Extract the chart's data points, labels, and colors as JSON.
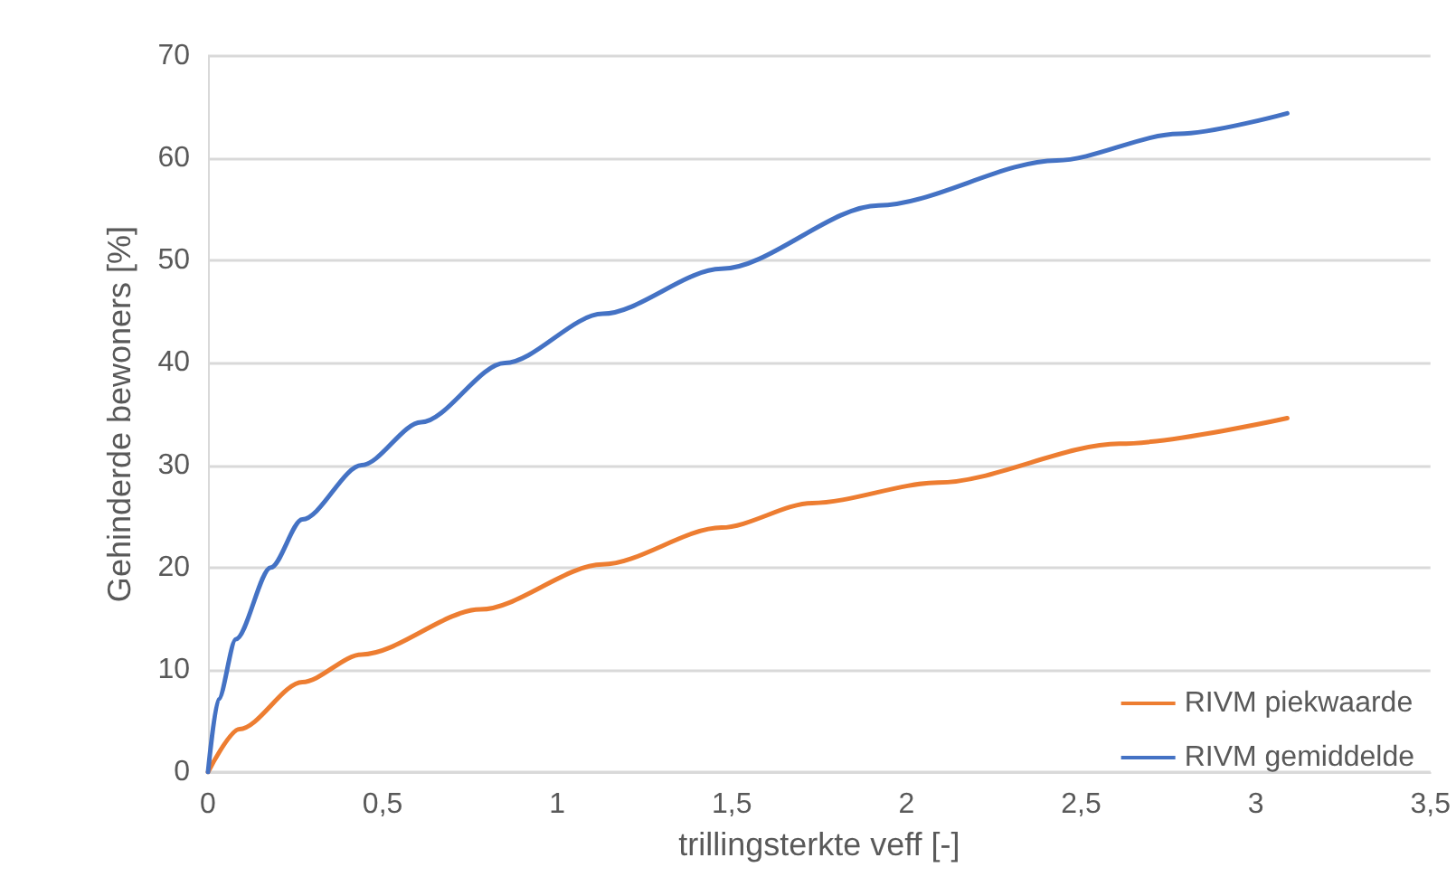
{
  "chart_data": {
    "type": "line",
    "xlabel": "trillingsterkte veff [-]",
    "ylabel": "Gehinderde bewoners [%]",
    "xlim": [
      0,
      3.5
    ],
    "xticks": [
      {
        "value": 0,
        "label": "0"
      },
      {
        "value": 0.5,
        "label": "0,5"
      },
      {
        "value": 1,
        "label": "1"
      },
      {
        "value": 1.5,
        "label": "1,5"
      },
      {
        "value": 2,
        "label": "2"
      },
      {
        "value": 2.5,
        "label": "2,5"
      },
      {
        "value": 3,
        "label": "3"
      },
      {
        "value": 3.5,
        "label": "3,5"
      }
    ],
    "ylim": [
      0,
      70
    ],
    "yticks": [
      0,
      10,
      20,
      30,
      40,
      50,
      60,
      70
    ],
    "grid": "y",
    "legend": "bottom right",
    "marker": "none",
    "line_style": "solid",
    "series": [
      {
        "name": "RIVM piekwaarde",
        "color": "#ed7d31",
        "x": [
          0,
          0.09,
          0.27,
          0.44,
          0.78,
          1.13,
          1.47,
          1.73,
          2.09,
          2.61,
          3.09
        ],
        "values": [
          0,
          4.2,
          8.8,
          11.5,
          15.9,
          20.3,
          23.9,
          26.3,
          28.3,
          32.1,
          34.6
        ]
      },
      {
        "name": "RIVM gemiddelde",
        "color": "#4472c4",
        "x": [
          0,
          0.03,
          0.08,
          0.18,
          0.27,
          0.44,
          0.61,
          0.85,
          1.13,
          1.47,
          1.92,
          2.43,
          2.78,
          3.09
        ],
        "values": [
          0,
          7.1,
          13,
          20,
          24.7,
          30,
          34.2,
          40,
          44.8,
          49.2,
          55.4,
          59.8,
          62.4,
          64.4
        ]
      }
    ]
  }
}
